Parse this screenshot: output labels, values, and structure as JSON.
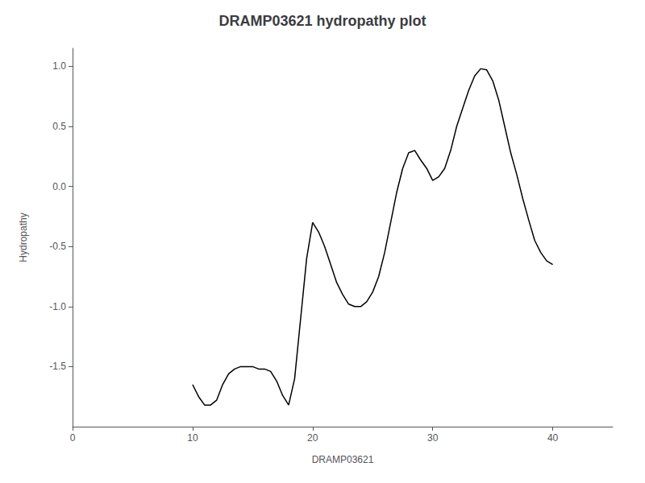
{
  "chart_data": {
    "type": "line",
    "title": "DRAMP03621 hydropathy plot",
    "xlabel": "DRAMP03621",
    "ylabel": "Hydropathy",
    "xlim": [
      0,
      45
    ],
    "ylim": [
      -2.0,
      1.15
    ],
    "xticks": [
      0,
      10,
      20,
      30,
      40
    ],
    "yticks": [
      -1.5,
      {
        "value": -1.0,
        "label": "-1.0"
      },
      -0.5,
      {
        "value": 0.0,
        "label": "0.0"
      },
      0.5,
      {
        "value": 1.0,
        "label": "1.0"
      }
    ],
    "color": "#000000",
    "grid": false,
    "x": [
      10.0,
      10.5,
      11.0,
      11.5,
      12.0,
      12.5,
      13.0,
      13.5,
      14.0,
      14.5,
      15.0,
      15.5,
      16.0,
      16.5,
      17.0,
      17.5,
      18.0,
      18.5,
      19.0,
      19.5,
      20.0,
      20.5,
      21.0,
      21.5,
      22.0,
      22.5,
      23.0,
      23.5,
      24.0,
      24.5,
      25.0,
      25.5,
      26.0,
      26.5,
      27.0,
      27.5,
      28.0,
      28.5,
      29.0,
      29.5,
      30.0,
      30.5,
      31.0,
      31.5,
      32.0,
      32.5,
      33.0,
      33.5,
      34.0,
      34.5,
      35.0,
      35.5,
      36.0,
      36.5,
      37.0,
      37.5,
      38.0,
      38.5,
      39.0,
      39.5,
      40.0
    ],
    "values": [
      -1.65,
      -1.75,
      -1.82,
      -1.82,
      -1.78,
      -1.65,
      -1.56,
      -1.52,
      -1.5,
      -1.5,
      -1.5,
      -1.52,
      -1.52,
      -1.54,
      -1.62,
      -1.74,
      -1.82,
      -1.6,
      -1.1,
      -0.6,
      -0.3,
      -0.38,
      -0.5,
      -0.65,
      -0.8,
      -0.9,
      -0.98,
      -1.0,
      -1.0,
      -0.96,
      -0.88,
      -0.75,
      -0.55,
      -0.3,
      -0.05,
      0.15,
      0.28,
      0.3,
      0.22,
      0.15,
      0.05,
      0.08,
      0.15,
      0.3,
      0.5,
      0.65,
      0.8,
      0.92,
      0.98,
      0.97,
      0.88,
      0.72,
      0.5,
      0.28,
      0.1,
      -0.1,
      -0.28,
      -0.45,
      -0.55,
      -0.62,
      -0.65
    ]
  }
}
